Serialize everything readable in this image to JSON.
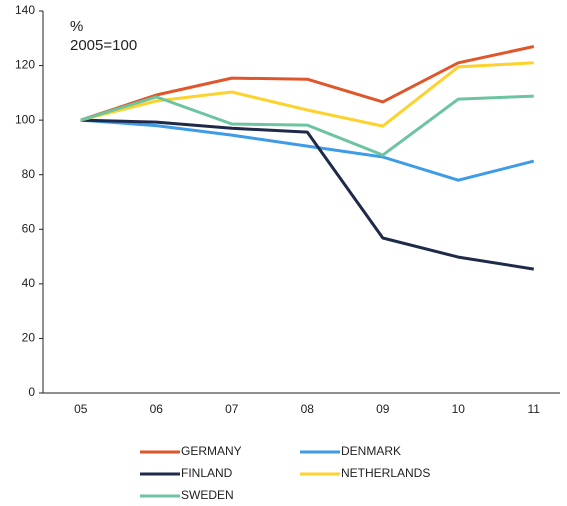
{
  "chart_data": {
    "type": "line",
    "annotations": [
      "%",
      "2005=100"
    ],
    "categories": [
      "05",
      "06",
      "07",
      "08",
      "09",
      "10",
      "11"
    ],
    "series": [
      {
        "name": "GERMANY",
        "color": "#e0562a",
        "values": [
          100,
          109.2,
          115.4,
          115,
          106.7,
          121,
          127
        ]
      },
      {
        "name": "DENMARK",
        "color": "#3d9be8",
        "values": [
          100,
          98,
          94.5,
          90.5,
          86.5,
          78,
          85
        ]
      },
      {
        "name": "FINLAND",
        "color": "#1f2a4a",
        "values": [
          100,
          99.3,
          97,
          95.6,
          56.8,
          49.8,
          45.4
        ]
      },
      {
        "name": "NETHERLANDS",
        "color": "#fcd22d",
        "values": [
          100,
          107,
          110.3,
          103.7,
          97.8,
          119.5,
          121
        ]
      },
      {
        "name": "SWEDEN",
        "color": "#6cc4a0",
        "values": [
          100,
          108.5,
          98.6,
          98.2,
          87.2,
          107.7,
          108.8
        ]
      }
    ],
    "ylim": [
      0,
      140
    ],
    "yticks": [
      0,
      20,
      40,
      60,
      80,
      100,
      120,
      140
    ],
    "legend": "bottom"
  }
}
